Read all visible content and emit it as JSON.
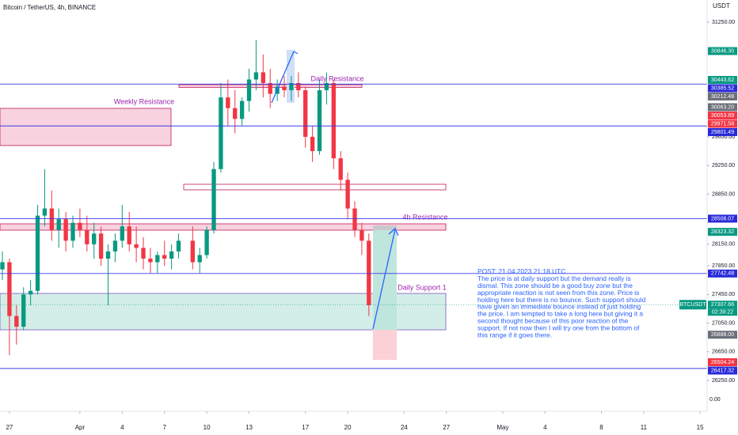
{
  "chart_data": {
    "type": "candlestick",
    "title": "Bitcoin / TetherUS, 4h, BINANCE",
    "currency": "USDT",
    "up_color": "#089981",
    "down_color": "#f23645",
    "xlim": [
      -0.67,
      49.5
    ],
    "ylim": [
      25820,
      31559
    ],
    "xticks": [
      {
        "value": 0,
        "label": "27"
      },
      {
        "value": 5,
        "label": "Apr"
      },
      {
        "value": 8,
        "label": "4"
      },
      {
        "value": 11,
        "label": "7"
      },
      {
        "value": 14,
        "label": "10"
      },
      {
        "value": 17,
        "label": "13"
      },
      {
        "value": 21,
        "label": "17"
      },
      {
        "value": 24,
        "label": "20"
      },
      {
        "value": 28,
        "label": "24"
      },
      {
        "value": 31,
        "label": "27"
      },
      {
        "value": 35,
        "label": "May"
      },
      {
        "value": 38,
        "label": "4"
      },
      {
        "value": 42,
        "label": "8"
      },
      {
        "value": 45,
        "label": "11"
      },
      {
        "value": 49,
        "label": "15"
      }
    ],
    "yticks": [
      {
        "value": 31250,
        "label": "31250.00"
      },
      {
        "value": 29650,
        "label": "29650.00"
      },
      {
        "value": 29250,
        "label": "29250.00"
      },
      {
        "value": 28850,
        "label": "28850.00"
      },
      {
        "value": 28150,
        "label": "28150.00"
      },
      {
        "value": 27850,
        "label": "27850.00"
      },
      {
        "value": 27450,
        "label": "27450.00"
      },
      {
        "value": 27050,
        "label": "27050.00"
      },
      {
        "value": 26650,
        "label": "26650.00"
      },
      {
        "value": 26250,
        "label": "26250.00"
      }
    ],
    "axis_extra": "0.00",
    "x": [
      -0.5,
      0,
      0.5,
      1,
      1.5,
      2,
      2.5,
      3,
      3.5,
      4,
      4.5,
      5,
      5.5,
      6,
      6.5,
      7,
      7.5,
      8,
      8.5,
      9,
      9.5,
      10,
      10.5,
      11,
      11.5,
      12,
      13,
      13.5,
      14,
      14.5,
      15,
      15.5,
      16,
      16.5,
      17,
      17.5,
      18,
      18.5,
      19,
      19.5,
      20,
      20.5,
      21,
      21.5,
      22,
      22.5,
      23,
      23.5,
      24,
      24.5,
      25,
      25.5
    ],
    "open": [
      27800,
      27900,
      27150,
      27000,
      27450,
      27500,
      28550,
      28650,
      28350,
      28500,
      28200,
      28450,
      28350,
      28150,
      28300,
      27950,
      28050,
      28200,
      28400,
      28150,
      28100,
      27950,
      27900,
      28000,
      27950,
      28050,
      28200,
      27900,
      28000,
      28350,
      29200,
      30200,
      30050,
      29900,
      30150,
      30450,
      30550,
      30400,
      30250,
      30350,
      30300,
      30400,
      30300,
      29650,
      29450,
      30300,
      30400,
      29350,
      29050,
      28650,
      28350,
      28200
    ],
    "high": [
      28050,
      27950,
      27300,
      27550,
      27650,
      28700,
      29200,
      28900,
      28650,
      28600,
      28550,
      28650,
      28550,
      28450,
      28400,
      28150,
      28300,
      28700,
      28600,
      28400,
      28250,
      28100,
      28050,
      28200,
      28150,
      28300,
      28400,
      28100,
      28400,
      29300,
      30400,
      30450,
      30300,
      30200,
      30600,
      31000,
      30800,
      30600,
      30450,
      30500,
      30500,
      30550,
      30350,
      29800,
      30450,
      30550,
      30450,
      29450,
      29150,
      28750,
      28450,
      28300
    ],
    "low": [
      27650,
      26600,
      26750,
      26950,
      27300,
      27450,
      28400,
      28200,
      28100,
      28050,
      28100,
      28250,
      28050,
      27950,
      27850,
      27300,
      27900,
      28100,
      28050,
      27900,
      27800,
      27750,
      27750,
      27850,
      27800,
      27950,
      27800,
      27750,
      27950,
      28300,
      29150,
      29800,
      29700,
      29800,
      30000,
      30300,
      30200,
      30050,
      30150,
      30200,
      30150,
      30200,
      29500,
      29300,
      29400,
      30100,
      29200,
      28900,
      28500,
      28250,
      28000,
      27150
    ],
    "close": [
      27900,
      27150,
      27000,
      27450,
      27500,
      28550,
      28650,
      28350,
      28500,
      28200,
      28450,
      28350,
      28150,
      28300,
      27950,
      28050,
      28200,
      28400,
      28150,
      28100,
      27950,
      27900,
      28000,
      27950,
      28050,
      28200,
      27900,
      28000,
      28350,
      29200,
      30200,
      30050,
      29900,
      30150,
      30450,
      30550,
      30400,
      30250,
      30350,
      30300,
      30400,
      30300,
      29650,
      29450,
      30300,
      30400,
      29350,
      29050,
      28650,
      28350,
      28200,
      27300
    ],
    "levels": [
      30385.52,
      29801.49,
      28508.07,
      27742.48,
      26417.32
    ],
    "level_color": "#3a3ae6",
    "last_price": 27307.66,
    "price_labels": [
      {
        "value": 30846.3,
        "label": "30846.30",
        "color": "#089981"
      },
      {
        "value": 30443.62,
        "label": "30443.62",
        "color": "#089981"
      },
      {
        "value": 30385.52,
        "label": "30385.52",
        "color": "#2a2ad8"
      },
      {
        "value": 30212.48,
        "label": "30212.48",
        "color": "#6b6f7a"
      },
      {
        "value": 30063.2,
        "label": "30063.20",
        "color": "#6b6f7a"
      },
      {
        "value": 30053.89,
        "label": "30053.89",
        "color": "#f23645"
      },
      {
        "value": 29971.58,
        "label": "29971.58",
        "color": "#f23645"
      },
      {
        "value": 29801.49,
        "label": "29801.49",
        "color": "#2a2ad8"
      },
      {
        "value": 28508.07,
        "label": "28508.07",
        "color": "#2a2ad8"
      },
      {
        "value": 28323.32,
        "label": "28323.32",
        "color": "#089981"
      },
      {
        "value": 27742.48,
        "label": "27742.48",
        "color": "#2a2ad8"
      },
      {
        "value": 27307.66,
        "label": "27307.66",
        "color": "#089981"
      },
      {
        "value": 26888.0,
        "label": "26888.00",
        "color": "#6b6f7a"
      },
      {
        "value": 26504.24,
        "label": "26504.24",
        "color": "#f23645"
      },
      {
        "value": 26417.32,
        "label": "26417.32",
        "color": "#2a2ad8"
      }
    ],
    "countdown": "02:39:22",
    "symbol": "BTCUSDT",
    "annotations": {
      "weekly": "Weekly Resistance",
      "daily": "Daily Resistance",
      "h4": "4h Resistance",
      "support": "Daily Support 1"
    },
    "note": {
      "lines": [
        "POST: 21.04.2023 21:18 UTC",
        "The price is at daily support but the demand really is",
        "dismal. This zone should be a good buy zone but the",
        "appropriate reaction is not seen from this zone. Price is",
        "holding here but there is no bounce. Such support should",
        "have given an immediate bounce instead of just holding",
        "the price. I am tempted to take a long here but giving it a",
        "second thought because of this poor reaction of the",
        "support. If not now then I will try one from the bottom of",
        "this range if it goes there."
      ]
    }
  }
}
